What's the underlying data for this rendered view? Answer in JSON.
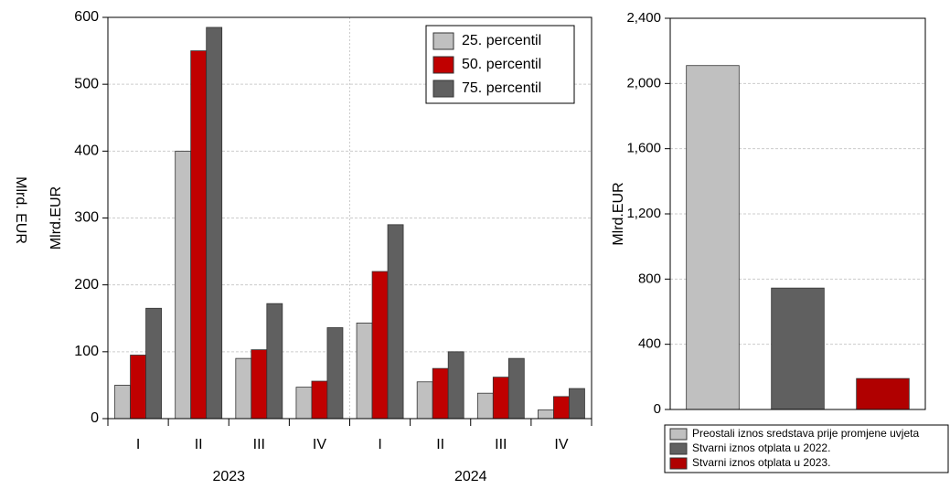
{
  "cropped_panel": {
    "ylabel": "Mlrd. EUR"
  },
  "chart_data": [
    {
      "type": "bar",
      "ylabel": "Mlrd.EUR",
      "categories": [
        "I",
        "II",
        "III",
        "IV",
        "I",
        "II",
        "III",
        "IV"
      ],
      "groups": [
        "2023",
        "2024"
      ],
      "series": [
        {
          "name": "25. percentil",
          "color": "#c0c0c0",
          "values": [
            50,
            400,
            90,
            47,
            143,
            55,
            38,
            13
          ]
        },
        {
          "name": "50. percentil",
          "color": "#c00000",
          "values": [
            95,
            550,
            103,
            56,
            220,
            75,
            62,
            33
          ]
        },
        {
          "name": "75. percentil",
          "color": "#606060",
          "values": [
            165,
            585,
            172,
            136,
            290,
            100,
            90,
            45
          ]
        }
      ],
      "ylim": [
        0,
        600
      ],
      "yticks": [
        0,
        100,
        200,
        300,
        400,
        500,
        600
      ],
      "grid": true,
      "legend": "top-right"
    },
    {
      "type": "bar",
      "ylabel": "Mlrd.EUR",
      "categories": [
        "Preostali iznos sredstava prije promjene uvjeta",
        "Stvarni iznos otplata u 2022.",
        "Stvarni iznos otplata u 2023."
      ],
      "values": [
        2110,
        745,
        190
      ],
      "colors": [
        "#c0c0c0",
        "#606060",
        "#b00000"
      ],
      "ylim": [
        0,
        2400
      ],
      "yticks": [
        0,
        400,
        800,
        {
          "value": 1200,
          "label": "1,200"
        },
        {
          "value": 1600,
          "label": "1,600"
        },
        {
          "value": 2000,
          "label": "2,000"
        },
        {
          "value": 2400,
          "label": "2,400"
        }
      ],
      "grid": true,
      "legend": "bottom"
    }
  ]
}
